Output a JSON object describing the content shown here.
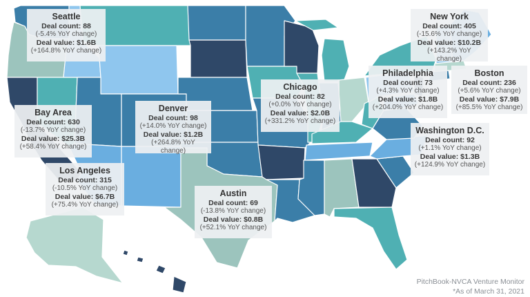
{
  "colors": {
    "dark_navy": "#2f4868",
    "mid_blue": "#3b7ea8",
    "sky_blue": "#6aaee0",
    "light_blue": "#8fc6ee",
    "teal": "#4fb0b3",
    "sage": "#9cc4bd",
    "mint": "#b6d8cf",
    "callout_bg": "#eef0f2"
  },
  "metros": [
    {
      "city": "Seattle",
      "count": "Deal count: 88",
      "count_change": "(-5.4% YoY change)",
      "value": "Deal value: $1.6B",
      "value_change": "(+164.8% YoY change)"
    },
    {
      "city": "Bay Area",
      "count": "Deal count: 630",
      "count_change": "(-13.7% YoY change)",
      "value": "Deal value: $25.3B",
      "value_change": "(+58.4% YoY change)"
    },
    {
      "city": "Los Angeles",
      "count": "Deal count: 315",
      "count_change": "(-10.5% YoY change)",
      "value": "Deal value: $6.7B",
      "value_change": "(+75.4% YoY change)"
    },
    {
      "city": "Denver",
      "count": "Deal count: 98",
      "count_change": "(+14.0% YoY change)",
      "value": "Deal value: $1.2B",
      "value_change": "(+264.8% YoY change)"
    },
    {
      "city": "Austin",
      "count": "Deal count: 69",
      "count_change": "(-13.8% YoY change)",
      "value": "Deal value: $0.8B",
      "value_change": "(+52.1% YoY change)"
    },
    {
      "city": "Chicago",
      "count": "Deal count: 82",
      "count_change": "(+0.0% YoY change)",
      "value": "Deal value: $2.0B",
      "value_change": "(+331.2% YoY change)"
    },
    {
      "city": "New York",
      "count": "Deal count: 405",
      "count_change": "(-15.6% YoY change)",
      "value": "Deal value: $10.2B",
      "value_change": "(+143.2% YoY change)"
    },
    {
      "city": "Philadelphia",
      "count": "Deal count: 73",
      "count_change": "(+4.3% YoY change)",
      "value": "Deal value: $1.8B",
      "value_change": "(+204.0% YoY change)"
    },
    {
      "city": "Boston",
      "count": "Deal count: 236",
      "count_change": "(+5.6% YoY change)",
      "value": "Deal value: $7.9B",
      "value_change": "(+85.5% YoY change)"
    },
    {
      "city": "Washington D.C.",
      "count": "Deal count: 92",
      "count_change": "(+1.1% YoY change)",
      "value": "Deal value: $1.3B",
      "value_change": "(+124.9% YoY change)"
    }
  ],
  "source": {
    "line1": "PitchBook-NVCA Venture Monitor",
    "line2": "*As of March 31, 2021"
  }
}
